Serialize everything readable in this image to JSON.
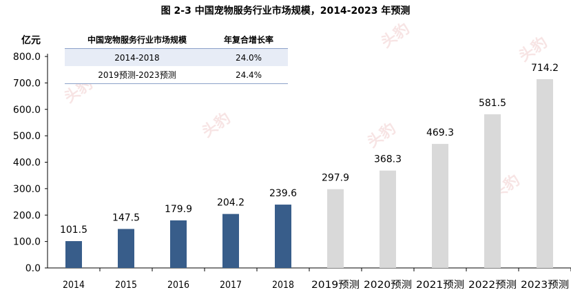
{
  "title": "图 2-3 中国宠物服务行业市场规模，2014-2023 年预测",
  "unit_label": "亿元",
  "colors": {
    "actual": "#385d8a",
    "forecast": "#d9d9d9",
    "axis": "#000000",
    "watermark": "#e8b2b2"
  },
  "watermark_text": "头豹",
  "cagr_table": {
    "headers": [
      "中国宠物服务行业市场规模",
      "年复合增长率"
    ],
    "rows": [
      {
        "period": "2014-2018",
        "rate": "24.0%"
      },
      {
        "period": "2019预测-2023预测",
        "rate": "24.4%"
      }
    ]
  },
  "chart_data": {
    "type": "bar",
    "title": "图 2-3 中国宠物服务行业市场规模，2014-2023 年预测",
    "ylabel": "亿元",
    "xlabel": "",
    "ylim": [
      0,
      800
    ],
    "yticks": [
      "0.0",
      "100.0",
      "200.0",
      "300.0",
      "400.0",
      "500.0",
      "600.0",
      "700.0",
      "800.0"
    ],
    "categories": [
      "2014",
      "2015",
      "2016",
      "2017",
      "2018",
      "2019预测",
      "2020预测",
      "2021预测",
      "2022预测",
      "2023预测"
    ],
    "values": [
      101.5,
      147.5,
      179.9,
      204.2,
      239.6,
      297.9,
      368.3,
      469.3,
      581.5,
      714.2
    ],
    "value_labels": [
      "101.5",
      "147.5",
      "179.9",
      "204.2",
      "239.6",
      "297.9",
      "368.3",
      "469.3",
      "581.5",
      "714.2"
    ],
    "forecast_from_index": 5,
    "grid": false,
    "legend": "none"
  }
}
